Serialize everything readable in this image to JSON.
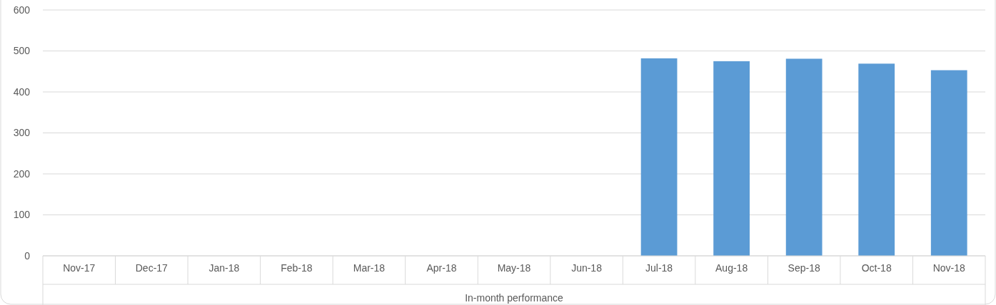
{
  "chart_data": {
    "type": "bar",
    "xlabel": "In-month performance",
    "categories": [
      "Nov-17",
      "Dec-17",
      "Jan-18",
      "Feb-18",
      "Mar-18",
      "Apr-18",
      "May-18",
      "Jun-18",
      "Jul-18",
      "Aug-18",
      "Sep-18",
      "Oct-18",
      "Nov-18"
    ],
    "values": [
      null,
      null,
      null,
      null,
      null,
      null,
      null,
      null,
      482,
      475,
      481,
      469,
      453
    ],
    "color": "#5b9bd5",
    "ylim": [
      0,
      600
    ],
    "yticks": [
      0,
      100,
      200,
      300,
      400,
      500,
      600
    ],
    "grid": "y"
  }
}
